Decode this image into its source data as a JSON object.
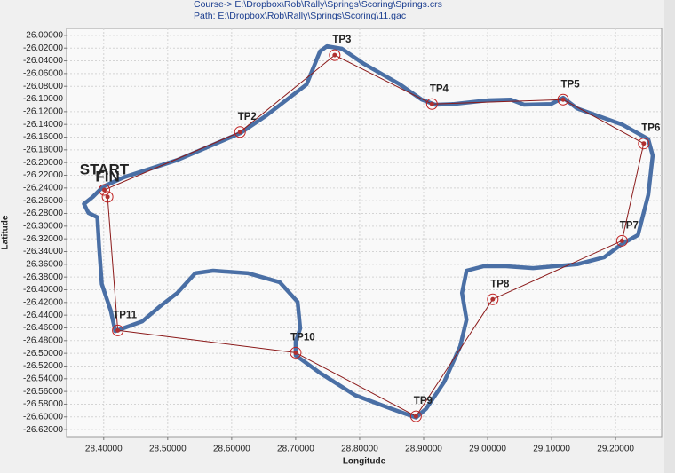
{
  "chart_data": {
    "type": "line",
    "subtitle": "Course-> E:\\Dropbox\\Rob\\Rally\\Springs\\Scoring\\Springs.crs",
    "title": "Path: E:\\Dropbox\\Rob\\Rally\\Springs\\Scoring\\11.gac",
    "x_label": "Longitude",
    "y_label": "Latitude",
    "xlim": [
      28.342,
      29.272
    ],
    "ylim": [
      -26.631,
      -25.989
    ],
    "grid": true,
    "xticks": [
      {
        "value": 28.4,
        "label": "28.40000"
      },
      {
        "value": 28.5,
        "label": "28.50000"
      },
      {
        "value": 28.6,
        "label": "28.60000"
      },
      {
        "value": 28.7,
        "label": "28.70000"
      },
      {
        "value": 28.8,
        "label": "28.80000"
      },
      {
        "value": 28.9,
        "label": "28.90000"
      },
      {
        "value": 29.0,
        "label": "29.00000"
      },
      {
        "value": 29.1,
        "label": "29.10000"
      },
      {
        "value": 29.2,
        "label": "29.20000"
      }
    ],
    "yticks": [
      {
        "value": -26.0,
        "label": "-26.00000"
      },
      {
        "value": -26.02,
        "label": "-26.02000"
      },
      {
        "value": -26.04,
        "label": "-26.04000"
      },
      {
        "value": -26.06,
        "label": "-26.06000"
      },
      {
        "value": -26.08,
        "label": "-26.08000"
      },
      {
        "value": -26.1,
        "label": "-26.10000"
      },
      {
        "value": -26.12,
        "label": "-26.12000"
      },
      {
        "value": -26.14,
        "label": "-26.14000"
      },
      {
        "value": -26.16,
        "label": "-26.16000"
      },
      {
        "value": -26.18,
        "label": "-26.18000"
      },
      {
        "value": -26.2,
        "label": "-26.20000"
      },
      {
        "value": -26.22,
        "label": "-26.22000"
      },
      {
        "value": -26.24,
        "label": "-26.24000"
      },
      {
        "value": -26.26,
        "label": "-26.26000"
      },
      {
        "value": -26.28,
        "label": "-26.28000"
      },
      {
        "value": -26.3,
        "label": "-26.30000"
      },
      {
        "value": -26.32,
        "label": "-26.32000"
      },
      {
        "value": -26.34,
        "label": "-26.34000"
      },
      {
        "value": -26.36,
        "label": "-26.36000"
      },
      {
        "value": -26.38,
        "label": "-26.38000"
      },
      {
        "value": -26.4,
        "label": "-26.40000"
      },
      {
        "value": -26.42,
        "label": "-26.42000"
      },
      {
        "value": -26.44,
        "label": "-26.44000"
      },
      {
        "value": -26.46,
        "label": "-26.46000"
      },
      {
        "value": -26.48,
        "label": "-26.48000"
      },
      {
        "value": -26.5,
        "label": "-26.50000"
      },
      {
        "value": -26.52,
        "label": "-26.52000"
      },
      {
        "value": -26.54,
        "label": "-26.54000"
      },
      {
        "value": -26.56,
        "label": "-26.56000"
      },
      {
        "value": -26.58,
        "label": "-26.58000"
      },
      {
        "value": -26.6,
        "label": "-26.60000"
      },
      {
        "value": -26.62,
        "label": "-26.62000"
      }
    ],
    "series": [
      {
        "color": "#4a6fa5",
        "x": [
          28.401,
          28.432,
          28.515,
          28.613,
          28.654,
          28.717,
          28.738,
          28.749,
          28.772,
          28.807,
          28.863,
          28.897,
          28.918,
          28.946,
          29.001,
          29.036,
          29.057,
          29.099,
          29.118,
          29.14,
          29.21,
          29.251,
          29.258,
          29.251,
          29.235,
          29.21,
          29.182,
          29.14,
          29.071,
          29.029,
          28.994,
          28.967,
          28.96,
          28.967,
          28.957,
          28.932,
          28.904,
          28.888,
          28.849,
          28.793,
          28.738,
          28.7,
          28.7,
          28.707,
          28.703,
          28.675,
          28.626,
          28.571,
          28.543,
          28.515,
          28.488,
          28.46,
          28.418,
          28.411,
          28.397,
          28.393,
          28.39,
          28.376,
          28.369,
          28.383,
          28.397
        ],
        "values": [
          -26.237,
          -26.223,
          -26.196,
          -26.154,
          -26.126,
          -26.077,
          -26.025,
          -26.017,
          -26.021,
          -26.045,
          -26.077,
          -26.101,
          -26.109,
          -26.108,
          -26.102,
          -26.101,
          -26.109,
          -26.108,
          -26.098,
          -26.115,
          -26.14,
          -26.163,
          -26.189,
          -26.251,
          -26.314,
          -26.328,
          -26.349,
          -26.36,
          -26.366,
          -26.363,
          -26.363,
          -26.37,
          -26.405,
          -26.447,
          -26.489,
          -26.545,
          -26.587,
          -26.601,
          -26.587,
          -26.566,
          -26.531,
          -26.503,
          -26.482,
          -26.461,
          -26.419,
          -26.388,
          -26.374,
          -26.37,
          -26.374,
          -26.405,
          -26.426,
          -26.45,
          -26.465,
          -26.433,
          -26.391,
          -26.335,
          -26.286,
          -26.279,
          -26.265,
          -26.254,
          -26.24
        ]
      },
      {
        "color": "#8b1a1a",
        "x": [
          28.401,
          28.613,
          28.761,
          28.913,
          29.118,
          29.244,
          29.21,
          29.008,
          28.888,
          28.7,
          28.422,
          28.406
        ],
        "values": [
          -26.243,
          -26.152,
          -26.031,
          -26.108,
          -26.101,
          -26.17,
          -26.323,
          -26.415,
          -26.599,
          -26.499,
          -26.464,
          -26.254
        ],
        "labels": [
          "START",
          "TP2",
          "TP3",
          "TP4",
          "TP5",
          "TP6",
          "TP7",
          "TP8",
          "TP9",
          "TP10",
          "TP11",
          "FIN"
        ],
        "label_colors": [
          "#2a8a2a",
          "#000000",
          "#000000",
          "#000000",
          "#000000",
          "#000000",
          "#000000",
          "#000000",
          "#000000",
          "#000000",
          "#000000",
          "#e01010"
        ]
      }
    ]
  }
}
